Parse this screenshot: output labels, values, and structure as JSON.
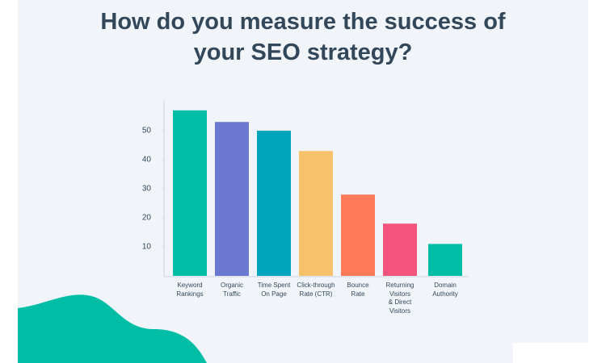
{
  "chart_data": {
    "type": "bar",
    "title": "How do you measure the success of\nyour SEO strategy?",
    "categories": [
      "Keyword\nRankings",
      "Organic\nTraffic",
      "Time Spent\nOn Page",
      "Click-through\nRate (CTR)",
      "Bounce\nRate",
      "Returning\nVisitors\n& Direct\nVisitors",
      "Domain\nAuthority"
    ],
    "values": [
      57,
      53,
      50,
      43,
      28,
      18,
      11
    ],
    "colors": [
      "#00bda5",
      "#6a78d1",
      "#00a4bd",
      "#f5c26b",
      "#ff7a59",
      "#f2547d",
      "#00bda5"
    ],
    "ylim": [
      0,
      60
    ],
    "yticks": [
      10,
      20,
      30,
      40,
      50
    ],
    "grid": false
  }
}
